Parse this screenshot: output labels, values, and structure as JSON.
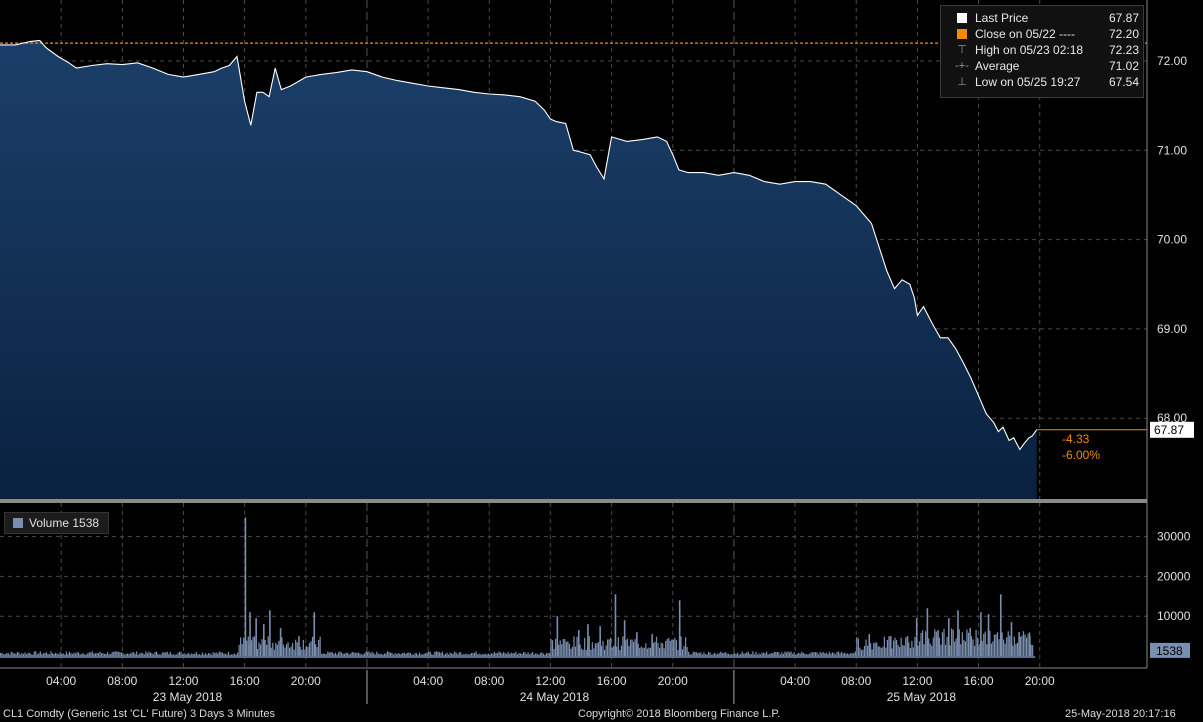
{
  "chart_data": {
    "type": "area",
    "title": "",
    "xlabel": "",
    "ylabel": "",
    "x_range_hours": [
      0,
      67.8
    ],
    "ylim": [
      67.0,
      72.5
    ],
    "yticks": [
      72.0,
      71.0,
      70.0,
      69.0,
      68.0
    ],
    "ytick_labels": [
      "72.00",
      "71.00",
      "70.00",
      "69.00",
      "68.00"
    ],
    "xticks_hours": [
      4,
      8,
      12,
      16,
      20,
      28,
      32,
      36,
      40,
      44,
      52,
      56,
      60,
      64,
      68
    ],
    "xtick_labels": [
      "04:00",
      "08:00",
      "12:00",
      "16:00",
      "20:00",
      "04:00",
      "08:00",
      "12:00",
      "16:00",
      "20:00",
      "04:00",
      "08:00",
      "12:00",
      "16:00",
      "20:00"
    ],
    "day_labels": [
      {
        "label": "23 May 2018",
        "center_hour": 12
      },
      {
        "label": "24 May 2018",
        "center_hour": 36
      },
      {
        "label": "25 May 2018",
        "center_hour": 60
      }
    ],
    "day_dividers_hours": [
      24,
      48
    ],
    "grid": true,
    "legend_position": "top-right",
    "price_series": {
      "name": "Last Price",
      "x_hours": [
        0,
        1,
        2,
        2.6,
        3,
        3.8,
        4.5,
        5,
        6,
        7,
        8,
        9,
        10,
        11,
        12,
        13,
        14,
        14.5,
        15,
        15.5,
        16,
        16.4,
        16.8,
        17.2,
        17.6,
        18,
        18.4,
        19,
        20,
        21,
        22,
        23,
        24,
        25,
        26,
        27,
        28,
        29,
        30,
        31,
        32,
        33,
        34,
        35,
        35.6,
        36,
        36.4,
        37,
        37.5,
        38,
        38.6,
        39,
        39.5,
        40,
        41,
        42,
        43,
        43.6,
        44,
        44.4,
        45,
        46,
        47,
        48,
        49,
        50,
        51,
        52,
        53,
        54,
        55,
        56,
        57,
        58,
        58.5,
        59,
        59.5,
        59.8,
        60,
        60.4,
        60.7,
        61,
        61.5,
        62,
        62.5,
        63,
        63.5,
        64,
        64.5,
        65,
        65.3,
        65.6,
        66,
        66.3,
        66.7,
        67,
        67.3,
        67.5,
        67.8
      ],
      "y": [
        72.18,
        72.18,
        72.22,
        72.23,
        72.15,
        72.05,
        71.98,
        71.92,
        71.95,
        71.97,
        71.96,
        71.98,
        71.92,
        71.85,
        71.82,
        71.85,
        71.88,
        71.92,
        71.95,
        72.05,
        71.55,
        71.28,
        71.65,
        71.65,
        71.6,
        71.92,
        71.68,
        71.72,
        71.82,
        71.85,
        71.87,
        71.9,
        71.88,
        71.82,
        71.78,
        71.75,
        71.72,
        71.7,
        71.68,
        71.65,
        71.63,
        71.62,
        71.6,
        71.55,
        71.45,
        71.35,
        71.32,
        71.3,
        71.0,
        70.98,
        70.95,
        70.82,
        70.68,
        71.15,
        71.1,
        71.12,
        71.15,
        71.1,
        70.95,
        70.78,
        70.75,
        70.75,
        70.72,
        70.75,
        70.72,
        70.65,
        70.62,
        70.65,
        70.65,
        70.62,
        70.5,
        70.38,
        70.18,
        69.65,
        69.45,
        69.55,
        69.5,
        69.35,
        69.15,
        69.25,
        69.15,
        69.05,
        68.9,
        68.9,
        68.78,
        68.62,
        68.45,
        68.25,
        68.05,
        67.95,
        67.85,
        67.9,
        67.75,
        67.78,
        67.65,
        67.72,
        67.78,
        67.8,
        67.87
      ],
      "last": 67.87,
      "last_label": "67.87"
    },
    "reference_line": {
      "name": "Close on 05/22",
      "value": 72.2
    },
    "change": {
      "abs": "-4.33",
      "pct": "-6.00%"
    },
    "volume": {
      "ylim": [
        0,
        40000
      ],
      "yticks": [
        10000,
        20000,
        30000
      ],
      "ytick_labels": [
        "10000",
        "20000",
        "30000"
      ],
      "last": 1538,
      "last_label": "1538",
      "spikes_hours": [
        16.0,
        16.3,
        16.7,
        17.2,
        17.6,
        18.3,
        19.5,
        20.5,
        36.4,
        37.8,
        38.4,
        39.2,
        40.2,
        40.8,
        41.6,
        42.6,
        44.4,
        56.8,
        58.2,
        59.3,
        59.9,
        60.6,
        61.3,
        62.0,
        62.6,
        63.4,
        64.1,
        64.6,
        65.4,
        66.1,
        66.6,
        67.3
      ],
      "spikes_values": [
        34800,
        11000,
        9500,
        8000,
        11500,
        7000,
        5000,
        11000,
        10000,
        6500,
        8000,
        7500,
        15500,
        9000,
        6000,
        5500,
        14000,
        5500,
        5000,
        5000,
        9500,
        12000,
        6500,
        9500,
        11500,
        7000,
        11000,
        10500,
        15500,
        8500,
        6000,
        5000
      ]
    }
  },
  "legend": {
    "items": [
      {
        "label": "Last Price",
        "value": "67.87",
        "color": "#ffffff"
      },
      {
        "label": "Close on 05/22 ----",
        "value": "72.20",
        "color": "#f08c00"
      },
      {
        "label": "High on 05/23 02:18",
        "value": "72.23",
        "color": "#999999"
      },
      {
        "label": "Average",
        "value": "71.02",
        "color": "#999999"
      },
      {
        "label": "Low on 05/25 19:27",
        "value": "67.54",
        "color": "#999999"
      }
    ]
  },
  "volume_legend": {
    "label": "Volume  1538",
    "color": "#7a8fb0"
  },
  "footer": {
    "left": "CL1 Comdty (Generic 1st 'CL' Future) 3 Days 3 Minutes",
    "center": "Copyright© 2018 Bloomberg Finance L.P.",
    "right": "25-May-2018 20:17:16"
  },
  "colors": {
    "area_top": "#1a3d66",
    "area_bottom": "#0b2340",
    "price_line": "#ffffff",
    "reference": "#f08c00",
    "volume": "#7a8fb0",
    "grid": "#4a4a4a"
  }
}
